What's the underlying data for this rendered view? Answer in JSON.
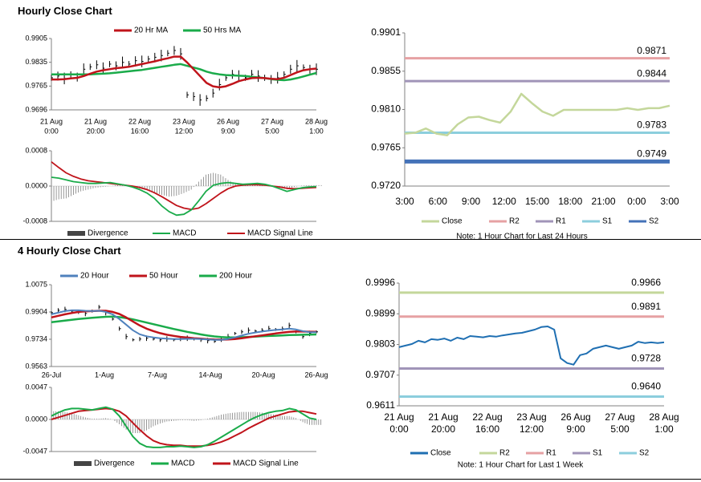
{
  "titles": {
    "hourly": "Hourly Close Chart",
    "four_hourly": "4 Hourly Close Chart"
  },
  "colors": {
    "ma20": "#c0141b",
    "ma50": "#1aab4a",
    "ma200": "#1aab4a",
    "ma20_4h": "#4f81bd",
    "macd": "#1aab4a",
    "signal": "#c0141b",
    "divergence": "#7f7f7f",
    "close_light": "#c4d79b",
    "close_dark": "#1f6fb2",
    "r2": "#e6a1a3",
    "r1": "#a094b8",
    "s1": "#8ccedd",
    "s2": "#4472b8",
    "r2_b": "#c4d79b",
    "r1_b": "#e6a1a3",
    "s1_b": "#a094b8",
    "s2_b": "#8ccedd",
    "price": "#000000",
    "axis": "#808080"
  },
  "chart_data": [
    {
      "id": "hourly_price",
      "type": "line",
      "legend": [
        "20 Hr MA",
        "50 Hrs MA"
      ],
      "ylim": [
        0.9696,
        0.9905
      ],
      "yticks": [
        "0.9905",
        "0.9835",
        "0.9765",
        "0.9696"
      ],
      "xticks": [
        [
          "21 Aug",
          "0:00"
        ],
        [
          "21 Aug",
          "20:00"
        ],
        [
          "22 Aug",
          "16:00"
        ],
        [
          "23 Aug",
          "12:00"
        ],
        [
          "26 Aug",
          "9:00"
        ],
        [
          "27 Aug",
          "5:00"
        ],
        [
          "28 Aug",
          "1:00"
        ]
      ],
      "price": [
        0.979,
        0.9795,
        0.9788,
        0.98,
        0.9792,
        0.9815,
        0.9822,
        0.9828,
        0.9818,
        0.983,
        0.9825,
        0.9835,
        0.983,
        0.984,
        0.9838,
        0.9845,
        0.985,
        0.9855,
        0.9862,
        0.987,
        0.986,
        0.974,
        0.9735,
        0.9725,
        0.973,
        0.9745,
        0.977,
        0.979,
        0.98,
        0.9795,
        0.979,
        0.98,
        0.9795,
        0.979,
        0.9785,
        0.979,
        0.98,
        0.9815,
        0.9825,
        0.982,
        0.9815,
        0.9815
      ],
      "ma20": [
        0.9785,
        0.9785,
        0.9786,
        0.9788,
        0.979,
        0.9795,
        0.9802,
        0.9808,
        0.9812,
        0.9815,
        0.9818,
        0.982,
        0.9822,
        0.9826,
        0.983,
        0.9834,
        0.9838,
        0.9843,
        0.9847,
        0.9852,
        0.9852,
        0.9835,
        0.9815,
        0.9795,
        0.9775,
        0.9765,
        0.9762,
        0.9765,
        0.9772,
        0.978,
        0.9785,
        0.9789,
        0.979,
        0.9789,
        0.9787,
        0.9786,
        0.979,
        0.9798,
        0.9806,
        0.9812,
        0.9815,
        0.9817
      ],
      "ma50": [
        0.98,
        0.98,
        0.98,
        0.98,
        0.98,
        0.98,
        0.98,
        0.9801,
        0.9802,
        0.9803,
        0.9805,
        0.9807,
        0.9809,
        0.9811,
        0.9813,
        0.9816,
        0.9819,
        0.9822,
        0.9825,
        0.9828,
        0.983,
        0.9825,
        0.982,
        0.9815,
        0.9808,
        0.9803,
        0.98,
        0.9798,
        0.9797,
        0.9796,
        0.9795,
        0.9793,
        0.9791,
        0.9789,
        0.9786,
        0.9784,
        0.9783,
        0.9785,
        0.9789,
        0.9794,
        0.9799,
        0.9804
      ]
    },
    {
      "id": "hourly_macd",
      "type": "line",
      "legend": [
        "Divergence",
        "MACD",
        "MACD Signal Line"
      ],
      "ylim": [
        -0.0008,
        0.0008
      ],
      "yticks": [
        "0.0008",
        "0.0000",
        "-0.0008"
      ],
      "macd": [
        0.0002,
        0.00018,
        0.00014,
        0.0001,
        8e-05,
        6e-05,
        6e-05,
        7e-05,
        8e-05,
        5e-05,
        2e-05,
        -2e-05,
        -8e-05,
        -0.00016,
        -0.00028,
        -0.00045,
        -0.00058,
        -0.00066,
        -0.00064,
        -0.00054,
        -0.00034,
        -0.00012,
        2e-05,
        6e-05,
        8e-05,
        6e-05,
        4e-05,
        5e-05,
        6e-05,
        4e-05,
        0.0,
        -6e-05,
        -0.00012,
        -8e-05,
        -4e-05,
        -2e-05,
        -1e-05
      ],
      "signal": [
        0.00055,
        0.00042,
        0.0003,
        0.00022,
        0.00016,
        0.00012,
        0.0001,
        8e-05,
        6e-05,
        4e-05,
        2e-05,
        0.0,
        -3e-05,
        -8e-05,
        -0.00015,
        -0.00024,
        -0.00034,
        -0.00044,
        -0.0005,
        -0.00053,
        -0.0005,
        -0.0004,
        -0.00028,
        -0.00016,
        -6e-05,
        0.0,
        2e-05,
        3e-05,
        3e-05,
        2e-05,
        0.0,
        -2e-05,
        -5e-05,
        -6e-05,
        -5e-05,
        -4e-05,
        -3e-05
      ],
      "divergence": [
        -0.00035,
        -0.0003,
        -0.00028,
        -0.0002,
        -0.00012,
        -8e-05,
        -4e-05,
        -2e-05,
        0.0,
        2e-05,
        0.0,
        -3e-05,
        -6e-05,
        -0.0001,
        -0.00014,
        -0.0002,
        -0.00024,
        -0.00022,
        -0.00016,
        -8e-05,
        0.0001,
        0.00026,
        0.0003,
        0.00026,
        0.00014,
        6e-05,
        2e-05,
        2e-05,
        3e-05,
        2e-05,
        0.0,
        -4e-05,
        -7e-05,
        -2e-05,
        1e-05,
        2e-05,
        2e-05
      ]
    },
    {
      "id": "hourly_levels",
      "type": "line",
      "legend": [
        "Close",
        "R2",
        "R1",
        "S1",
        "S2"
      ],
      "ylim": [
        0.972,
        0.9901
      ],
      "yticks": [
        "0.9901",
        "0.9855",
        "0.9810",
        "0.9765",
        "0.9720"
      ],
      "xticks": [
        "3:00",
        "6:00",
        "9:00",
        "12:00",
        "15:00",
        "18:00",
        "21:00",
        "0:00",
        "3:00"
      ],
      "levels": {
        "R2": 0.9871,
        "R1": 0.9844,
        "S1": 0.9783,
        "S2": 0.9749
      },
      "level_labels": {
        "R2": "0.9871",
        "R1": "0.9844",
        "S1": "0.9783",
        "S2": "0.9749"
      },
      "close": [
        0.9782,
        0.9783,
        0.9788,
        0.9782,
        0.978,
        0.9793,
        0.9801,
        0.9802,
        0.9798,
        0.9795,
        0.9808,
        0.9829,
        0.9818,
        0.9808,
        0.9803,
        0.981,
        0.981,
        0.981,
        0.981,
        0.981,
        0.981,
        0.9812,
        0.981,
        0.9812,
        0.9812,
        0.9815
      ],
      "note": "Note: 1 Hour Chart for Last 24 Hours"
    },
    {
      "id": "four_hourly_price",
      "type": "line",
      "legend": [
        "20 Hour",
        "50 Hour",
        "200 Hour"
      ],
      "ylim": [
        0.9563,
        1.0075
      ],
      "yticks": [
        "1.0075",
        "0.9904",
        "0.9734",
        "0.9563"
      ],
      "xticks": [
        "26-Jul",
        "1-Aug",
        "7-Aug",
        "14-Aug",
        "20-Aug",
        "26-Aug"
      ],
      "price": [
        0.99,
        0.9915,
        0.992,
        0.991,
        0.9905,
        0.9895,
        0.991,
        0.9935,
        0.99,
        0.986,
        0.98,
        0.975,
        0.973,
        0.9735,
        0.974,
        0.9735,
        0.973,
        0.9735,
        0.973,
        0.9735,
        0.974,
        0.9735,
        0.973,
        0.9725,
        0.972,
        0.973,
        0.975,
        0.977,
        0.978,
        0.979,
        0.9785,
        0.979,
        0.98,
        0.9795,
        0.98,
        0.982,
        0.978,
        0.975,
        0.977,
        0.978
      ],
      "ma20": [
        0.989,
        0.99,
        0.991,
        0.9915,
        0.9915,
        0.9912,
        0.991,
        0.9912,
        0.9905,
        0.989,
        0.986,
        0.9825,
        0.979,
        0.9765,
        0.9752,
        0.9745,
        0.974,
        0.9737,
        0.9735,
        0.9735,
        0.9736,
        0.9736,
        0.9735,
        0.9732,
        0.973,
        0.973,
        0.9735,
        0.9745,
        0.9757,
        0.9768,
        0.9776,
        0.9782,
        0.9788,
        0.9792,
        0.9795,
        0.98,
        0.9795,
        0.9785,
        0.9778,
        0.9778
      ],
      "ma50": [
        0.987,
        0.988,
        0.989,
        0.9898,
        0.9905,
        0.9908,
        0.991,
        0.9912,
        0.9912,
        0.9905,
        0.9892,
        0.987,
        0.9845,
        0.982,
        0.98,
        0.9785,
        0.9772,
        0.9762,
        0.9755,
        0.9748,
        0.9744,
        0.974,
        0.9737,
        0.9734,
        0.9732,
        0.9731,
        0.9732,
        0.9735,
        0.974,
        0.9746,
        0.9752,
        0.9758,
        0.9764,
        0.977,
        0.9775,
        0.978,
        0.9782,
        0.9782,
        0.9781,
        0.978
      ],
      "ma200": [
        0.984,
        0.9845,
        0.985,
        0.9855,
        0.986,
        0.9864,
        0.9868,
        0.9871,
        0.9874,
        0.9875,
        0.9872,
        0.9866,
        0.9858,
        0.9848,
        0.9838,
        0.9828,
        0.9818,
        0.9808,
        0.9798,
        0.9789,
        0.978,
        0.9772,
        0.9764,
        0.9757,
        0.9751,
        0.9747,
        0.9745,
        0.9745,
        0.9746,
        0.9748,
        0.975,
        0.9752,
        0.9754,
        0.9756,
        0.9758,
        0.976,
        0.9761,
        0.9762,
        0.9763,
        0.9764
      ]
    },
    {
      "id": "four_hourly_macd",
      "type": "line",
      "legend": [
        "Divergence",
        "MACD",
        "MACD Signal Line"
      ],
      "ylim": [
        -0.0047,
        0.0047
      ],
      "yticks": [
        "0.0047",
        "0.0000",
        "-0.0047"
      ],
      "macd": [
        0.0005,
        0.001,
        0.0014,
        0.0016,
        0.0016,
        0.0015,
        0.0014,
        0.0016,
        0.0018,
        0.0015,
        0.0005,
        -0.001,
        -0.0025,
        -0.0035,
        -0.004,
        -0.0041,
        -0.0041,
        -0.004,
        -0.004,
        -0.0039,
        -0.004,
        -0.0041,
        -0.004,
        -0.0037,
        -0.0032,
        -0.0026,
        -0.002,
        -0.0014,
        -0.0008,
        -0.0002,
        0.0003,
        0.0007,
        0.001,
        0.0012,
        0.0013,
        0.0016,
        0.0014,
        0.0008,
        0.0002,
        0.0
      ],
      "signal": [
        0.0,
        0.0003,
        0.0006,
        0.0009,
        0.0012,
        0.0013,
        0.0014,
        0.0015,
        0.0016,
        0.0015,
        0.0012,
        0.0005,
        -0.0005,
        -0.0015,
        -0.0024,
        -0.0031,
        -0.0035,
        -0.0037,
        -0.0038,
        -0.0038,
        -0.0039,
        -0.0039,
        -0.0039,
        -0.0038,
        -0.0036,
        -0.0033,
        -0.0029,
        -0.0024,
        -0.0019,
        -0.0013,
        -0.0008,
        -0.0003,
        0.0002,
        0.0005,
        0.0008,
        0.0011,
        0.0012,
        0.0012,
        0.001,
        0.0008
      ],
      "divergence": [
        0.0012,
        0.0012,
        0.0011,
        0.0009,
        0.0006,
        0.0003,
        0.0001,
        0.0001,
        0.0002,
        0.0,
        -0.0007,
        -0.0015,
        -0.002,
        -0.002,
        -0.0016,
        -0.001,
        -0.0006,
        -0.0003,
        -0.0002,
        -0.0001,
        -0.0001,
        -0.0002,
        -0.0001,
        0.0001,
        0.0004,
        0.0007,
        0.0009,
        0.001,
        0.0011,
        0.0011,
        0.0011,
        0.001,
        0.0008,
        0.0007,
        0.0005,
        0.0005,
        0.0002,
        -0.0004,
        -0.0008,
        -0.0008
      ]
    },
    {
      "id": "four_hourly_levels",
      "type": "line",
      "legend": [
        "Close",
        "R2",
        "R1",
        "S1",
        "S2"
      ],
      "ylim": [
        0.9611,
        0.9996
      ],
      "yticks": [
        "0.9996",
        "0.9899",
        "0.9803",
        "0.9707",
        "0.9611"
      ],
      "xticks": [
        [
          "21 Aug",
          "0:00"
        ],
        [
          "21 Aug",
          "20:00"
        ],
        [
          "22 Aug",
          "16:00"
        ],
        [
          "23 Aug",
          "12:00"
        ],
        [
          "26 Aug",
          "9:00"
        ],
        [
          "27 Aug",
          "5:00"
        ],
        [
          "28 Aug",
          "1:00"
        ]
      ],
      "levels": {
        "R2": 0.9966,
        "R1": 0.9891,
        "S1": 0.9728,
        "S2": 0.964
      },
      "level_labels": {
        "R2": "0.9966",
        "R1": "0.9891",
        "S1": "0.9728",
        "S2": "0.9640"
      },
      "close": [
        0.9795,
        0.98,
        0.9805,
        0.9815,
        0.981,
        0.982,
        0.9818,
        0.9822,
        0.9815,
        0.9825,
        0.982,
        0.983,
        0.9828,
        0.9826,
        0.983,
        0.9828,
        0.9832,
        0.9835,
        0.9838,
        0.984,
        0.9845,
        0.985,
        0.9858,
        0.986,
        0.985,
        0.976,
        0.9745,
        0.974,
        0.977,
        0.9775,
        0.979,
        0.9795,
        0.98,
        0.9795,
        0.979,
        0.9795,
        0.98,
        0.9812,
        0.9808,
        0.981,
        0.9808,
        0.981
      ],
      "note": "Note: 1 Hour Chart for Last 1 Week"
    }
  ]
}
